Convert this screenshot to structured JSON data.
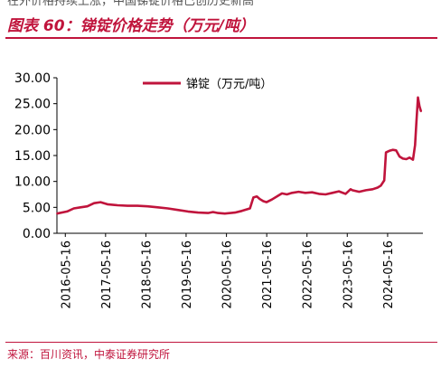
{
  "header": {
    "partial_text": "在外价格持续上涨，中国锑锭价格已创历史新高",
    "title": "图表 60：锑锭价格走势（万元/吨）"
  },
  "footer": {
    "source": "来源：百川资讯，中泰证券研究所"
  },
  "colors": {
    "accent": "#c0143c",
    "series": "#c0143c",
    "axis": "#000000"
  },
  "chart_data": {
    "type": "line",
    "title": "",
    "xlabel": "",
    "ylabel": "",
    "ylim": [
      0,
      30
    ],
    "yticks": [
      "0.00",
      "5.00",
      "10.00",
      "15.00",
      "20.00",
      "25.00",
      "30.00"
    ],
    "xticks": [
      "2016-05-16",
      "2017-05-16",
      "2018-05-16",
      "2019-05-16",
      "2020-05-16",
      "2021-05-16",
      "2022-05-16",
      "2023-05-16",
      "2024-05-16"
    ],
    "xlim": [
      "2016-03-01",
      "2025-04-01"
    ],
    "grid": false,
    "legend_position": "top-center",
    "series": [
      {
        "name": "锑锭（万元/吨）",
        "x": [
          "2016-03-01",
          "2016-06-01",
          "2016-08-01",
          "2016-10-01",
          "2016-12-01",
          "2017-02-01",
          "2017-04-01",
          "2017-06-01",
          "2017-09-01",
          "2017-12-01",
          "2018-03-01",
          "2018-06-01",
          "2018-09-01",
          "2018-12-01",
          "2019-03-01",
          "2019-06-01",
          "2019-09-01",
          "2019-12-01",
          "2020-01-15",
          "2020-03-01",
          "2020-05-01",
          "2020-08-01",
          "2020-10-01",
          "2020-12-15",
          "2021-01-15",
          "2021-02-15",
          "2021-03-15",
          "2021-04-15",
          "2021-05-15",
          "2021-07-01",
          "2021-09-01",
          "2021-10-01",
          "2021-11-15",
          "2022-01-01",
          "2022-03-01",
          "2022-05-01",
          "2022-07-01",
          "2022-09-01",
          "2022-11-01",
          "2023-01-01",
          "2023-03-01",
          "2023-05-01",
          "2023-06-15",
          "2023-07-01",
          "2023-09-01",
          "2023-11-01",
          "2024-01-01",
          "2024-02-15",
          "2024-03-15",
          "2024-04-15",
          "2024-05-01",
          "2024-06-01",
          "2024-07-01",
          "2024-08-01",
          "2024-09-01",
          "2024-10-01",
          "2024-11-01",
          "2024-12-01",
          "2025-01-01",
          "2025-01-20",
          "2025-02-01",
          "2025-02-15",
          "2025-03-01",
          "2025-03-15"
        ],
        "values": [
          3.8,
          4.2,
          4.8,
          5.0,
          5.2,
          5.8,
          6.0,
          5.6,
          5.4,
          5.3,
          5.3,
          5.2,
          5.0,
          4.8,
          4.5,
          4.2,
          4.0,
          3.9,
          4.1,
          3.9,
          3.8,
          4.0,
          4.3,
          4.8,
          6.9,
          7.1,
          6.6,
          6.2,
          6.0,
          6.5,
          7.3,
          7.7,
          7.5,
          7.8,
          8.0,
          7.8,
          7.9,
          7.6,
          7.5,
          7.8,
          8.1,
          7.6,
          8.5,
          8.3,
          8.0,
          8.3,
          8.5,
          8.8,
          9.2,
          10.2,
          15.6,
          15.9,
          16.1,
          16.0,
          14.8,
          14.4,
          14.3,
          14.6,
          14.2,
          17.0,
          21.5,
          26.2,
          24.5,
          23.5
        ]
      }
    ]
  }
}
